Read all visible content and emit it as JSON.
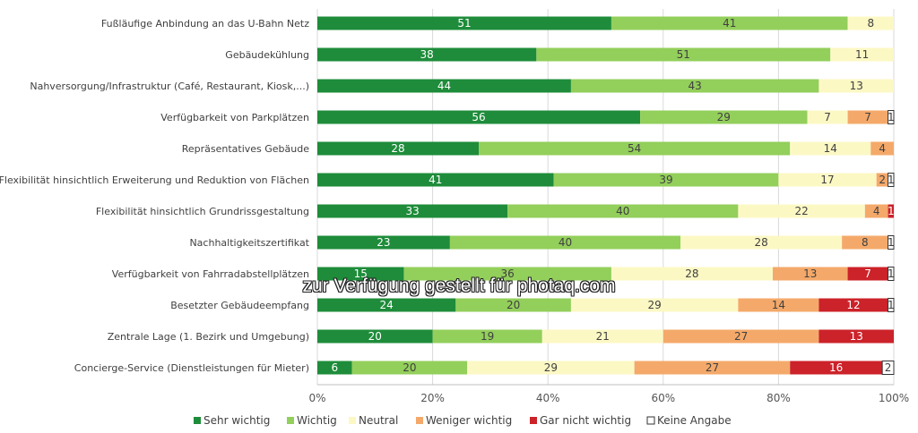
{
  "chart_data": {
    "type": "bar",
    "orientation": "horizontal",
    "stacked": "percent",
    "categories": [
      "Fußläufige Anbindung an das U-Bahn Netz",
      "Gebäudekühlung",
      "Nahversorgung/Infrastruktur (Café, Restaurant, Kiosk,...)",
      "Verfügbarkeit von Parkplätzen",
      "Repräsentatives Gebäude",
      "Flexibilität hinsichtlich Erweiterung und Reduktion von Flächen",
      "Flexibilität hinsichtlich Grundrissgestaltung",
      "Nachhaltigkeitszertifikat",
      "Verfügbarkeit von Fahrradabstellplätzen",
      "Besetzter Gebäudeempfang",
      "Zentrale Lage (1. Bezirk und Umgebung)",
      "Concierge-Service (Dienstleistungen für Mieter)"
    ],
    "series": [
      {
        "name": "Sehr wichtig",
        "color": "#1e8c3a",
        "values": [
          51,
          38,
          44,
          56,
          28,
          41,
          33,
          23,
          15,
          24,
          20,
          6
        ]
      },
      {
        "name": "Wichtig",
        "color": "#93cf5b",
        "values": [
          41,
          51,
          43,
          29,
          54,
          39,
          40,
          40,
          36,
          20,
          19,
          20
        ]
      },
      {
        "name": "Neutral",
        "color": "#fcf8c4",
        "values": [
          8,
          11,
          13,
          7,
          14,
          17,
          22,
          28,
          28,
          29,
          21,
          29
        ]
      },
      {
        "name": "Weniger wichtig",
        "color": "#f4a96a",
        "values": [
          0,
          0,
          0,
          7,
          4,
          2,
          4,
          8,
          13,
          14,
          27,
          27
        ]
      },
      {
        "name": "Gar nicht wichtig",
        "color": "#cc2229",
        "values": [
          0,
          0,
          0,
          0,
          0,
          0,
          1,
          0,
          7,
          12,
          13,
          16
        ]
      },
      {
        "name": "Keine Angabe",
        "color": "#ffffff",
        "values": [
          0,
          0,
          0,
          1,
          0,
          1,
          0,
          1,
          1,
          1,
          0,
          2
        ]
      }
    ],
    "xlim": [
      0,
      100
    ],
    "xticks": [
      "0%",
      "20%",
      "40%",
      "60%",
      "80%",
      "100%"
    ],
    "legend_position": "bottom",
    "grid": true
  },
  "watermark": "zur Verfügung gestellt für photaq.com"
}
